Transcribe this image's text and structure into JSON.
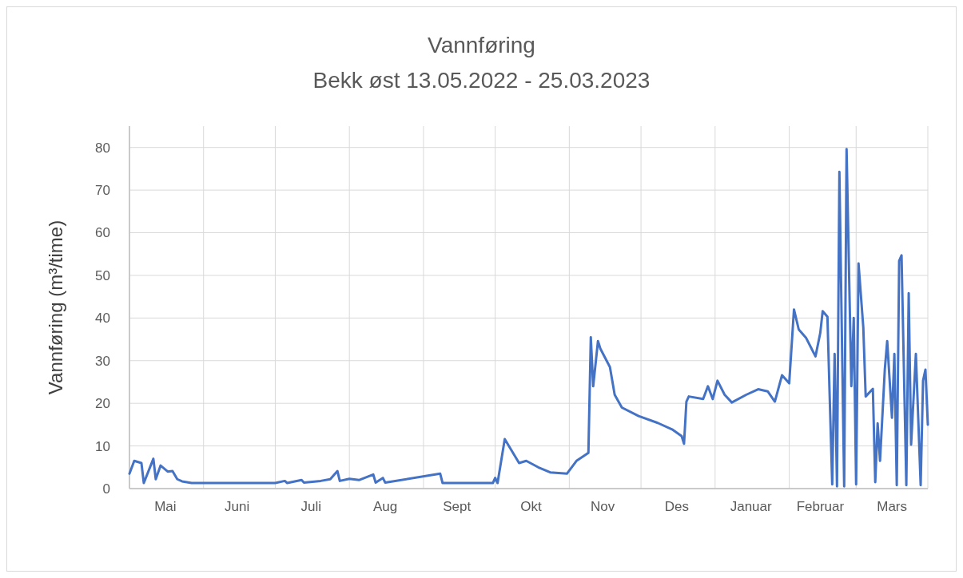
{
  "chart_data": {
    "type": "line",
    "title": "Vannføring",
    "subtitle": "Bekk øst 13.05.2022 - 25.03.2023",
    "ylabel": "Vannføring (m³/time)",
    "xlim": [
      "2022-05-01",
      "2023-03-31"
    ],
    "ylim": [
      0,
      85
    ],
    "xticks": [
      {
        "value": "2022-05-01",
        "label": null
      },
      {
        "value": "2022-05-16",
        "label": "Mai"
      },
      {
        "value": "2022-06-01",
        "label": null
      },
      {
        "value": "2022-06-15",
        "label": "Juni"
      },
      {
        "value": "2022-07-01",
        "label": null
      },
      {
        "value": "2022-07-16",
        "label": "Juli"
      },
      {
        "value": "2022-08-01",
        "label": null
      },
      {
        "value": "2022-08-16",
        "label": "Aug"
      },
      {
        "value": "2022-09-01",
        "label": null
      },
      {
        "value": "2022-09-15",
        "label": "Sept"
      },
      {
        "value": "2022-10-01",
        "label": null
      },
      {
        "value": "2022-10-16",
        "label": "Okt"
      },
      {
        "value": "2022-11-01",
        "label": null
      },
      {
        "value": "2022-11-15",
        "label": "Nov"
      },
      {
        "value": "2022-12-01",
        "label": null
      },
      {
        "value": "2022-12-16",
        "label": "Des"
      },
      {
        "value": "2023-01-01",
        "label": null
      },
      {
        "value": "2023-01-16",
        "label": "Januar"
      },
      {
        "value": "2023-02-01",
        "label": null
      },
      {
        "value": "2023-02-14",
        "label": "Februar"
      },
      {
        "value": "2023-03-01",
        "label": null
      },
      {
        "value": "2023-03-16",
        "label": "Mars"
      },
      {
        "value": "2023-03-31",
        "label": null
      }
    ],
    "yticks": [
      0,
      10,
      20,
      30,
      40,
      50,
      60,
      70,
      80
    ],
    "grid": true,
    "marker": "none",
    "line_style": "solid",
    "series": [
      {
        "color": "#4472c4",
        "x": [
          "2022-05-01",
          "2022-05-03",
          "2022-05-06",
          "2022-05-07",
          "2022-05-11",
          "2022-05-12",
          "2022-05-14",
          "2022-05-17",
          "2022-05-19",
          "2022-05-21",
          "2022-05-23",
          "2022-05-27",
          "2022-06-15",
          "2022-07-01",
          "2022-07-05",
          "2022-07-06",
          "2022-07-12",
          "2022-07-13",
          "2022-07-20",
          "2022-07-24",
          "2022-07-27",
          "2022-07-28",
          "2022-08-01",
          "2022-08-05",
          "2022-08-11",
          "2022-08-12",
          "2022-08-15",
          "2022-08-16",
          "2022-09-08",
          "2022-09-09",
          "2022-09-30",
          "2022-10-01",
          "2022-10-02",
          "2022-10-05",
          "2022-10-11",
          "2022-10-14",
          "2022-10-19",
          "2022-10-24",
          "2022-10-31",
          "2022-11-04",
          "2022-11-09",
          "2022-11-10",
          "2022-11-11",
          "2022-11-13",
          "2022-11-14",
          "2022-11-18",
          "2022-11-20",
          "2022-11-23",
          "2022-11-30",
          "2022-12-08",
          "2022-12-14",
          "2022-12-18",
          "2022-12-19",
          "2022-12-20",
          "2022-12-21",
          "2022-12-27",
          "2022-12-29",
          "2022-12-31",
          "2023-01-02",
          "2023-01-05",
          "2023-01-08",
          "2023-01-14",
          "2023-01-19",
          "2023-01-23",
          "2023-01-26",
          "2023-01-29",
          "2023-02-01",
          "2023-02-03",
          "2023-02-05",
          "2023-02-08",
          "2023-02-12",
          "2023-02-14",
          "2023-02-15",
          "2023-02-17",
          "2023-02-18",
          "2023-02-19",
          "2023-02-20",
          "2023-02-21",
          "2023-02-22",
          "2023-02-24",
          "2023-02-25",
          "2023-02-27",
          "2023-02-28",
          "2023-03-01",
          "2023-03-02",
          "2023-03-04",
          "2023-03-05",
          "2023-03-08",
          "2023-03-09",
          "2023-03-10",
          "2023-03-11",
          "2023-03-13",
          "2023-03-14",
          "2023-03-16",
          "2023-03-17",
          "2023-03-18",
          "2023-03-19",
          "2023-03-20",
          "2023-03-22",
          "2023-03-23",
          "2023-03-24",
          "2023-03-26",
          "2023-03-28",
          "2023-03-29",
          "2023-03-30",
          "2023-03-31"
        ],
        "values": [
          3.5,
          6.5,
          6,
          1.3,
          7,
          2.2,
          5.4,
          4,
          4.1,
          2.2,
          1.7,
          1.3,
          1.3,
          1.3,
          1.8,
          1.3,
          2,
          1.4,
          1.8,
          2.2,
          4.1,
          1.8,
          2.3,
          2,
          3.3,
          1.4,
          2.5,
          1.4,
          3.5,
          1.3,
          1.3,
          2.5,
          1.3,
          11.6,
          6,
          6.5,
          5,
          3.8,
          3.5,
          6.5,
          8.4,
          35.5,
          24,
          34.6,
          32.8,
          28.5,
          22,
          19,
          17,
          15.4,
          13.9,
          12.3,
          10.5,
          20.4,
          21.6,
          21,
          24,
          21,
          25.3,
          22,
          20.2,
          22,
          23.3,
          22.8,
          20.4,
          26.6,
          24.7,
          42,
          37.3,
          35.4,
          31,
          36.5,
          41.6,
          40.3,
          20.4,
          1,
          31.6,
          0.5,
          74.3,
          0.5,
          79.6,
          24,
          40,
          1,
          52.8,
          37.8,
          21.6,
          23.4,
          1.5,
          15.3,
          6.5,
          27.9,
          34.6,
          16.6,
          31.6,
          0.8,
          53.4,
          54.7,
          0.8,
          45.8,
          10.3,
          31.6,
          0.8,
          25.3,
          27.9,
          15
        ]
      }
    ]
  }
}
